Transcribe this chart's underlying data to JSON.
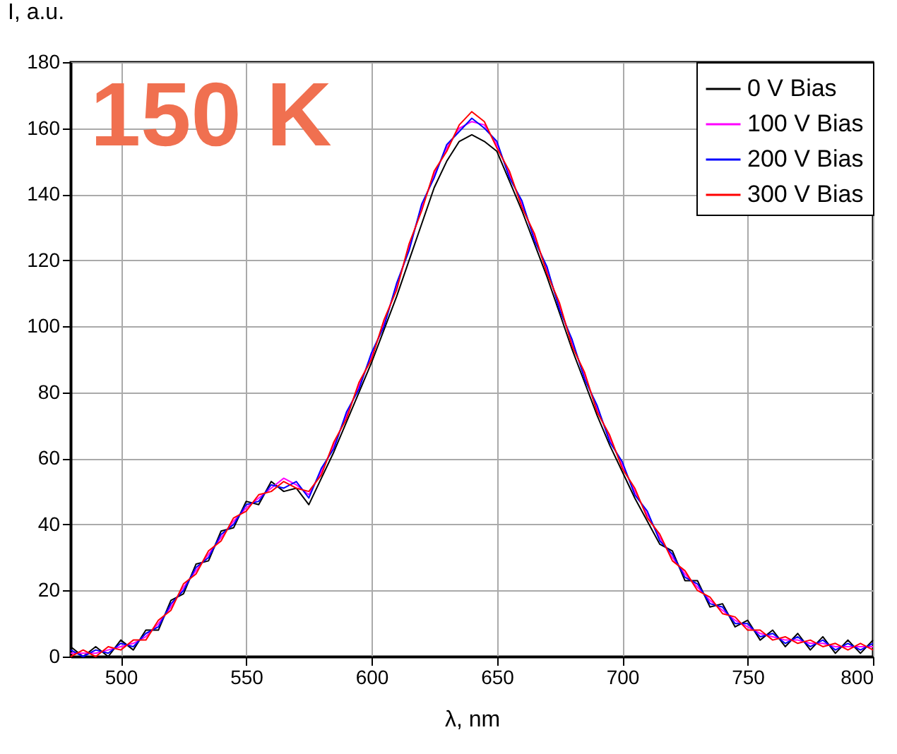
{
  "chart_data": {
    "type": "line",
    "xlabel": "λ, nm",
    "ylabel": "I, a.u.",
    "annotations": [
      "150 K"
    ],
    "x": [
      480,
      485,
      490,
      495,
      500,
      505,
      510,
      515,
      520,
      525,
      530,
      535,
      540,
      545,
      550,
      555,
      560,
      565,
      570,
      575,
      580,
      585,
      590,
      595,
      600,
      605,
      610,
      615,
      620,
      625,
      630,
      635,
      640,
      645,
      650,
      655,
      660,
      665,
      670,
      675,
      680,
      685,
      690,
      695,
      700,
      705,
      710,
      715,
      720,
      725,
      730,
      735,
      740,
      745,
      750,
      755,
      760,
      765,
      770,
      775,
      780,
      785,
      790,
      795,
      800
    ],
    "series": [
      {
        "name": "0 V Bias",
        "color": "#000000",
        "values": [
          3,
          0,
          3,
          0,
          5,
          2,
          8,
          8,
          17,
          19,
          28,
          29,
          38,
          39,
          47,
          46,
          53,
          50,
          51,
          46,
          54,
          62,
          71,
          80,
          89,
          99,
          109,
          120,
          131,
          142,
          150,
          156,
          158,
          156,
          153,
          144,
          135,
          125,
          115,
          104,
          93,
          83,
          73,
          64,
          56,
          48,
          41,
          34,
          32,
          23,
          23,
          15,
          16,
          9,
          11,
          5,
          8,
          3,
          7,
          2,
          6,
          1,
          5,
          1,
          5
        ]
      },
      {
        "name": "100 V Bias",
        "color": "#ff00ff",
        "values": [
          1,
          1,
          1,
          2,
          3,
          4,
          6,
          10,
          15,
          21,
          26,
          31,
          36,
          41,
          45,
          48,
          51,
          54,
          52,
          49,
          56,
          64,
          73,
          82,
          91,
          101,
          112,
          124,
          136,
          146,
          154,
          160,
          162,
          161,
          155,
          146,
          137,
          127,
          117,
          106,
          95,
          85,
          75,
          66,
          58,
          50,
          43,
          36,
          30,
          25,
          21,
          17,
          14,
          11,
          9,
          7,
          6,
          5,
          5,
          4,
          4,
          3,
          3,
          3,
          3
        ]
      },
      {
        "name": "200 V Bias",
        "color": "#0000ff",
        "values": [
          2,
          0,
          2,
          1,
          4,
          3,
          7,
          9,
          16,
          20,
          27,
          30,
          37,
          40,
          46,
          47,
          52,
          51,
          53,
          48,
          57,
          63,
          74,
          81,
          92,
          100,
          113,
          123,
          137,
          145,
          155,
          159,
          163,
          160,
          156,
          145,
          138,
          126,
          118,
          105,
          96,
          84,
          76,
          65,
          59,
          49,
          44,
          35,
          31,
          24,
          22,
          16,
          15,
          10,
          10,
          6,
          7,
          4,
          6,
          3,
          5,
          2,
          4,
          2,
          4
        ]
      },
      {
        "name": "300 V Bias",
        "color": "#ff0000",
        "values": [
          0,
          2,
          0,
          3,
          2,
          5,
          5,
          11,
          14,
          22,
          25,
          32,
          35,
          42,
          44,
          49,
          50,
          53,
          51,
          50,
          55,
          65,
          72,
          83,
          90,
          102,
          111,
          125,
          135,
          147,
          153,
          161,
          165,
          162,
          154,
          147,
          136,
          128,
          116,
          107,
          94,
          86,
          74,
          67,
          57,
          51,
          42,
          37,
          29,
          26,
          20,
          18,
          13,
          12,
          8,
          8,
          5,
          6,
          4,
          5,
          3,
          4,
          2,
          4,
          2
        ]
      }
    ],
    "xlim": [
      480,
      800
    ],
    "xticks": [
      500,
      550,
      600,
      650,
      700,
      750,
      800
    ],
    "ylim": [
      0,
      180
    ],
    "yticks": [
      0,
      20,
      40,
      60,
      80,
      100,
      120,
      140,
      160,
      180
    ],
    "grid": true,
    "legend": "top right",
    "marker": "none",
    "line_style": "solid"
  }
}
